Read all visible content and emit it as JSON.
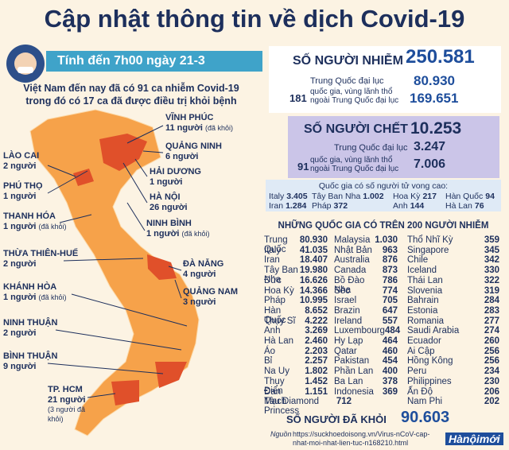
{
  "title": "Cập nhật thông tin về dịch Covid-19",
  "banner": "Tính đến 7h00 ngày 21-3",
  "intro": [
    "Việt Nam đến nay đã có 91 ca nhiễm Covid-19",
    "trong đó có 17 ca đã được điều trị khỏi bệnh"
  ],
  "provinces": [
    {
      "name": "VĨNH PHÚC",
      "count": "11 người",
      "note": "(đã khỏi)"
    },
    {
      "name": "QUẢNG NINH",
      "count": "6 người"
    },
    {
      "name": "HẢI DƯƠNG",
      "count": "1 người"
    },
    {
      "name": "HÀ NỘI",
      "count": "26 người"
    },
    {
      "name": "NINH BÌNH",
      "count": "1 người",
      "note": "(đã khỏi)"
    },
    {
      "name": "LÀO CAI",
      "count": "2 người"
    },
    {
      "name": "PHÚ THỌ",
      "count": "1 người"
    },
    {
      "name": "THANH HÓA",
      "count": "1 người",
      "note": "(đã khỏi)"
    },
    {
      "name": "THỪA THIÊN-HUẾ",
      "count": "2 người"
    },
    {
      "name": "ĐÀ NẴNG",
      "count": "4 người"
    },
    {
      "name": "QUẢNG NAM",
      "count": "3 người"
    },
    {
      "name": "KHÁNH HÒA",
      "count": "1 người",
      "note": "(đã khỏi)"
    },
    {
      "name": "NINH THUẬN",
      "count": "2 người"
    },
    {
      "name": "BÌNH THUẬN",
      "count": "9 người"
    },
    {
      "name": "TP. HCM",
      "count": "21 người",
      "note": "(3 người đã khỏi)"
    }
  ],
  "infected": {
    "label": "SỐ NGƯỜI NHIỄM",
    "total": "250.581",
    "china_label": "Trung Quốc đại lục",
    "china": "80.930",
    "other_count": "181",
    "other_label": "quốc gia, vùng lãnh thổ ngoài Trung Quốc đại lục",
    "other": "169.651"
  },
  "deaths": {
    "label": "SỐ NGƯỜI CHẾT",
    "total": "10.253",
    "china_label": "Trung Quốc đại lục",
    "china": "3.247",
    "other_count": "91",
    "other_label": "quốc gia, vùng lãnh thổ ngoài Trung Quốc đại lục",
    "other": "7.006"
  },
  "high_deaths": {
    "title": "Quốc gia có số người tử vong cao:",
    "items": [
      {
        "name": "Italy",
        "value": "3.405"
      },
      {
        "name": "Tây Ban Nha",
        "value": "1.002"
      },
      {
        "name": "Hoa Kỳ",
        "value": "217"
      },
      {
        "name": "Hàn Quốc",
        "value": "94"
      },
      {
        "name": "Iran",
        "value": "1.284"
      },
      {
        "name": "Pháp",
        "value": "372"
      },
      {
        "name": "Anh",
        "value": "144"
      },
      {
        "name": "Hà Lan",
        "value": "76"
      }
    ]
  },
  "table": {
    "title": "NHỮNG QUỐC GIA CÓ TRÊN 200 NGƯỜI NHIỄM",
    "columns": [
      [
        {
          "name": "Trung Quốc",
          "value": "80.930"
        },
        {
          "name": "Italy",
          "value": "41.035"
        },
        {
          "name": "Iran",
          "value": "18.407"
        },
        {
          "name": "Tây Ban Nha",
          "value": "19.980"
        },
        {
          "name": "Đức",
          "value": "16.626"
        },
        {
          "name": "Hoa Kỳ",
          "value": "14.366"
        },
        {
          "name": "Pháp",
          "value": "10.995"
        },
        {
          "name": "Hàn Quốc",
          "value": "8.652"
        },
        {
          "name": "Thụy Sĩ",
          "value": "4.222"
        },
        {
          "name": "Anh",
          "value": "3.269"
        },
        {
          "name": "Hà Lan",
          "value": "2.460"
        },
        {
          "name": "Áo",
          "value": "2.203"
        },
        {
          "name": "Bỉ",
          "value": "2.257"
        },
        {
          "name": "Na Uy",
          "value": "1.802"
        },
        {
          "name": "Thụy Điển",
          "value": "1.452"
        },
        {
          "name": "Đan Mạch",
          "value": "1.151"
        },
        {
          "name": "Tàu Diamond Princess",
          "value": "712"
        }
      ],
      [
        {
          "name": "Malaysia",
          "value": "1.030"
        },
        {
          "name": "Nhật Bản",
          "value": "963"
        },
        {
          "name": "Australia",
          "value": "876"
        },
        {
          "name": "Canada",
          "value": "873"
        },
        {
          "name": "Bồ Đào Nha",
          "value": "786"
        },
        {
          "name": "Séc",
          "value": "774"
        },
        {
          "name": "Israel",
          "value": "705"
        },
        {
          "name": "Brazin",
          "value": "647"
        },
        {
          "name": "Ireland",
          "value": "557"
        },
        {
          "name": "Luxembourg",
          "value": "484"
        },
        {
          "name": "Hy Lạp",
          "value": "464"
        },
        {
          "name": "Qatar",
          "value": "460"
        },
        {
          "name": "Pakistan",
          "value": "454"
        },
        {
          "name": "Phần Lan",
          "value": "400"
        },
        {
          "name": "Ba Lan",
          "value": "378"
        },
        {
          "name": "Indonesia",
          "value": "369"
        }
      ],
      [
        {
          "name": "Thổ Nhĩ Kỳ",
          "value": "359"
        },
        {
          "name": "Singapore",
          "value": "345"
        },
        {
          "name": "Chile",
          "value": "342"
        },
        {
          "name": "Iceland",
          "value": "330"
        },
        {
          "name": "Thái Lan",
          "value": "322"
        },
        {
          "name": "Slovenia",
          "value": "319"
        },
        {
          "name": "Bahrain",
          "value": "284"
        },
        {
          "name": "Estonia",
          "value": "283"
        },
        {
          "name": "Romania",
          "value": "277"
        },
        {
          "name": "Saudi Arabia",
          "value": "274"
        },
        {
          "name": "Ecuador",
          "value": "260"
        },
        {
          "name": "Ai Cập",
          "value": "256"
        },
        {
          "name": "Hồng Kông",
          "value": "256"
        },
        {
          "name": "Peru",
          "value": "234"
        },
        {
          "name": "Philippines",
          "value": "230"
        },
        {
          "name": "Ấn Độ",
          "value": "206"
        },
        {
          "name": "Nam Phi",
          "value": "202"
        }
      ]
    ]
  },
  "recovered": {
    "label": "SỐ NGƯỜI ĐÃ KHỎI",
    "total": "90.603"
  },
  "source": {
    "label": "Nguồn",
    "url": "https://suckhoedoisong.vn/Virus-nCoV-cap-nhat-moi-nhat-lien-tuc-n168210.html"
  },
  "logo": "Hànộimới"
}
